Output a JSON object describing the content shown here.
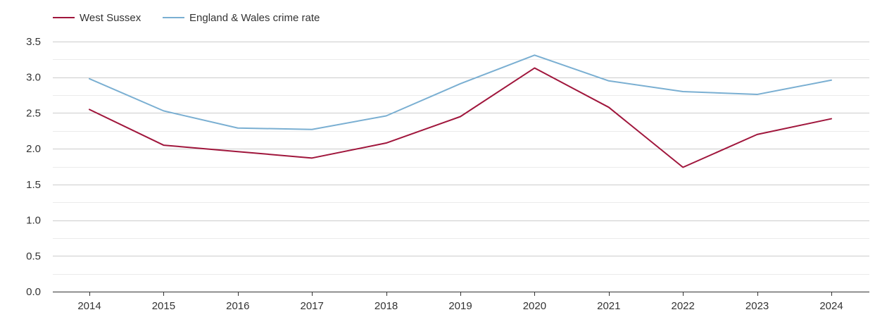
{
  "chart_data": {
    "type": "line",
    "title": "",
    "xlabel": "",
    "ylabel": "",
    "categories": [
      "2014",
      "2015",
      "2016",
      "2017",
      "2018",
      "2019",
      "2020",
      "2021",
      "2022",
      "2023",
      "2024"
    ],
    "ylim": [
      0,
      3.5
    ],
    "yticks": [
      "0.0",
      "0.5",
      "1.0",
      "1.5",
      "2.0",
      "2.5",
      "3.0",
      "3.5"
    ],
    "grid": true,
    "legend_position": "top-left",
    "series": [
      {
        "name": "West Sussex",
        "color": "#a0163c",
        "values": [
          2.55,
          2.05,
          1.96,
          1.87,
          2.08,
          2.45,
          3.13,
          2.58,
          1.74,
          2.2,
          2.42
        ]
      },
      {
        "name": "England & Wales crime rate",
        "color": "#7aafd2",
        "values": [
          2.98,
          2.53,
          2.29,
          2.27,
          2.46,
          2.91,
          3.31,
          2.95,
          2.8,
          2.76,
          2.96
        ]
      }
    ]
  }
}
